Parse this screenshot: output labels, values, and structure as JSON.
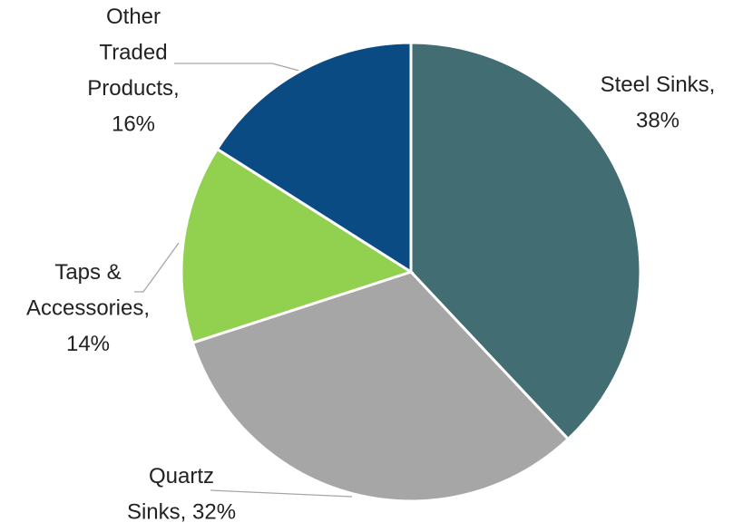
{
  "chart_data": {
    "type": "pie",
    "categories": [
      "Steel Sinks",
      "Quartz Sinks",
      "Taps & Accessories",
      "Other Traded Products"
    ],
    "values": [
      38,
      32,
      14,
      16
    ],
    "value_labels": [
      "Steel Sinks, 38%",
      "Quartz Sinks, 32%",
      "Taps & Accessories, 14%",
      "Other Traded Products, 16%"
    ],
    "colors": [
      "#426e73",
      "#a6a6a6",
      "#92d050",
      "#0b4b84"
    ]
  }
}
